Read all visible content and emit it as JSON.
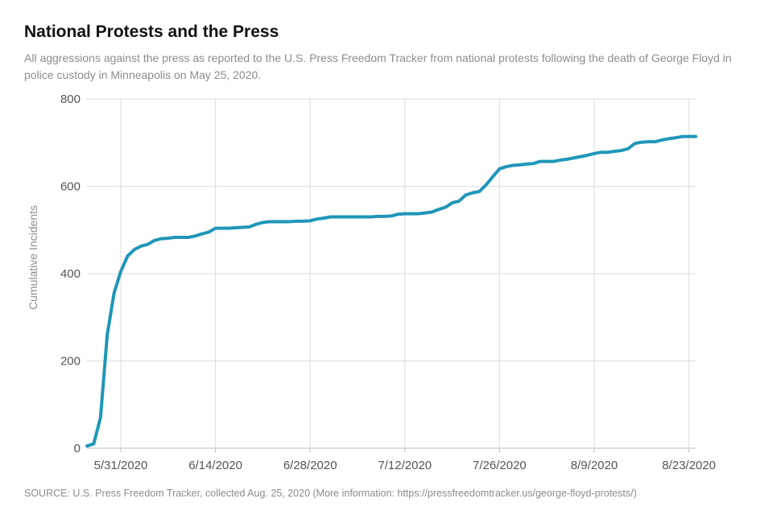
{
  "chart_data": {
    "type": "line",
    "title": "National Protests and the Press",
    "subtitle": "All aggressions against the press as reported to the U.S. Press Freedom Tracker from national protests following the death of George Floyd in police custody in Minneapolis on May 25, 2020.",
    "source": "SOURCE: U.S. Press Freedom Tracker, collected Aug. 25, 2020 (More information: https://pressfreedomtracker.us/george-floyd-protests/)",
    "xlabel": "",
    "ylabel": "Cumulative Incidents",
    "ylim": [
      0,
      800
    ],
    "yticks": [
      0,
      200,
      400,
      600,
      800
    ],
    "xlim": [
      "2020-05-26",
      "2020-08-24"
    ],
    "xticks": [
      {
        "date": "2020-05-31",
        "label": "5/31/2020"
      },
      {
        "date": "2020-06-14",
        "label": "6/14/2020"
      },
      {
        "date": "2020-06-28",
        "label": "6/28/2020"
      },
      {
        "date": "2020-07-12",
        "label": "7/12/2020"
      },
      {
        "date": "2020-07-26",
        "label": "7/26/2020"
      },
      {
        "date": "2020-08-09",
        "label": "8/9/2020"
      },
      {
        "date": "2020-08-23",
        "label": "8/23/2020"
      }
    ],
    "grid": true,
    "series": [
      {
        "color": "#1f96b8",
        "points": [
          [
            "2020-05-26",
            5
          ],
          [
            "2020-05-27",
            10
          ],
          [
            "2020-05-28",
            70
          ],
          [
            "2020-05-29",
            260
          ],
          [
            "2020-05-30",
            355
          ],
          [
            "2020-05-31",
            405
          ],
          [
            "2020-06-01",
            440
          ],
          [
            "2020-06-02",
            455
          ],
          [
            "2020-06-03",
            463
          ],
          [
            "2020-06-04",
            467
          ],
          [
            "2020-06-05",
            476
          ],
          [
            "2020-06-06",
            480
          ],
          [
            "2020-06-07",
            481
          ],
          [
            "2020-06-08",
            483
          ],
          [
            "2020-06-09",
            483
          ],
          [
            "2020-06-10",
            483
          ],
          [
            "2020-06-11",
            486
          ],
          [
            "2020-06-12",
            491
          ],
          [
            "2020-06-13",
            495
          ],
          [
            "2020-06-14",
            504
          ],
          [
            "2020-06-15",
            504
          ],
          [
            "2020-06-16",
            504
          ],
          [
            "2020-06-17",
            505
          ],
          [
            "2020-06-18",
            506
          ],
          [
            "2020-06-19",
            507
          ],
          [
            "2020-06-20",
            513
          ],
          [
            "2020-06-21",
            517
          ],
          [
            "2020-06-22",
            519
          ],
          [
            "2020-06-23",
            519
          ],
          [
            "2020-06-24",
            519
          ],
          [
            "2020-06-25",
            519
          ],
          [
            "2020-06-26",
            520
          ],
          [
            "2020-06-27",
            520
          ],
          [
            "2020-06-28",
            521
          ],
          [
            "2020-06-29",
            525
          ],
          [
            "2020-06-30",
            527
          ],
          [
            "2020-07-01",
            530
          ],
          [
            "2020-07-02",
            530
          ],
          [
            "2020-07-03",
            530
          ],
          [
            "2020-07-04",
            530
          ],
          [
            "2020-07-05",
            530
          ],
          [
            "2020-07-06",
            530
          ],
          [
            "2020-07-07",
            530
          ],
          [
            "2020-07-08",
            531
          ],
          [
            "2020-07-09",
            531
          ],
          [
            "2020-07-10",
            532
          ],
          [
            "2020-07-11",
            536
          ],
          [
            "2020-07-12",
            537
          ],
          [
            "2020-07-13",
            537
          ],
          [
            "2020-07-14",
            537
          ],
          [
            "2020-07-15",
            539
          ],
          [
            "2020-07-16",
            541
          ],
          [
            "2020-07-17",
            547
          ],
          [
            "2020-07-18",
            552
          ],
          [
            "2020-07-19",
            562
          ],
          [
            "2020-07-20",
            566
          ],
          [
            "2020-07-21",
            580
          ],
          [
            "2020-07-22",
            585
          ],
          [
            "2020-07-23",
            588
          ],
          [
            "2020-07-24",
            603
          ],
          [
            "2020-07-25",
            622
          ],
          [
            "2020-07-26",
            640
          ],
          [
            "2020-07-27",
            645
          ],
          [
            "2020-07-28",
            648
          ],
          [
            "2020-07-29",
            649
          ],
          [
            "2020-07-30",
            651
          ],
          [
            "2020-07-31",
            652
          ],
          [
            "2020-08-01",
            657
          ],
          [
            "2020-08-02",
            657
          ],
          [
            "2020-08-03",
            657
          ],
          [
            "2020-08-04",
            660
          ],
          [
            "2020-08-05",
            662
          ],
          [
            "2020-08-06",
            665
          ],
          [
            "2020-08-07",
            668
          ],
          [
            "2020-08-08",
            671
          ],
          [
            "2020-08-09",
            675
          ],
          [
            "2020-08-10",
            678
          ],
          [
            "2020-08-11",
            678
          ],
          [
            "2020-08-12",
            680
          ],
          [
            "2020-08-13",
            682
          ],
          [
            "2020-08-14",
            686
          ],
          [
            "2020-08-15",
            698
          ],
          [
            "2020-08-16",
            701
          ],
          [
            "2020-08-17",
            702
          ],
          [
            "2020-08-18",
            702
          ],
          [
            "2020-08-19",
            706
          ],
          [
            "2020-08-20",
            709
          ],
          [
            "2020-08-21",
            711
          ],
          [
            "2020-08-22",
            714
          ],
          [
            "2020-08-23",
            714
          ],
          [
            "2020-08-24",
            714
          ]
        ]
      }
    ]
  }
}
